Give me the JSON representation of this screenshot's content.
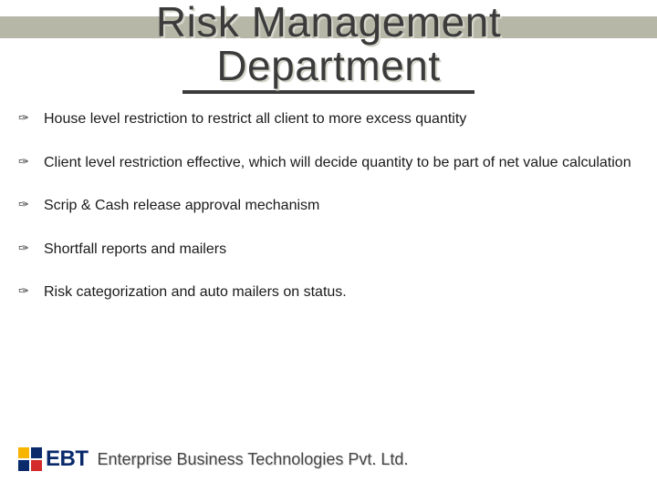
{
  "title": {
    "line1": "Risk Management",
    "line2": "Department",
    "color": "#3b3b3b",
    "shadow_color": "#d6d6cc",
    "underline_color": "#3b3b3b",
    "fontsize": 46
  },
  "header_band_color": "#b7b7a8",
  "bullets": {
    "glyph": "✑",
    "items": [
      "House level restriction to restrict all client  to more excess quantity",
      "Client level restriction effective, which will decide quantity to be part of net value calculation",
      "Scrip & Cash release approval mechanism",
      "Shortfall reports and mailers",
      "Risk categorization and auto mailers on status."
    ],
    "text_fontsize": 16,
    "text_color": "#1a1a1a"
  },
  "footer": {
    "logo_squares": [
      "#f7b500",
      "#0a2a6b",
      "#0a2a6b",
      "#d42c2c"
    ],
    "logo_text": "EBT",
    "logo_text_color": "#0a2a6b",
    "company": "Enterprise Business Technologies Pvt. Ltd.",
    "company_color": "#444444",
    "company_fontsize": 18
  },
  "background_color": "#ffffff"
}
